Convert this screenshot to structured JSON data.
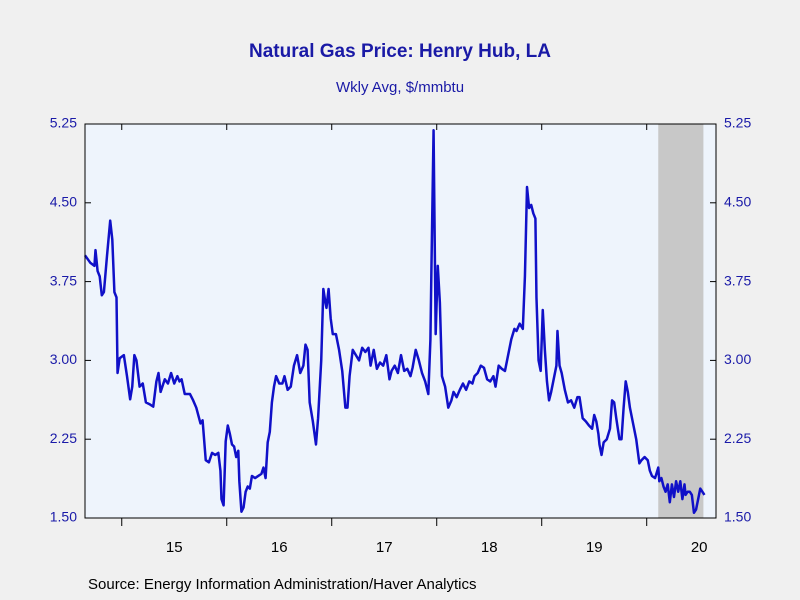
{
  "chart_data": {
    "type": "line",
    "title": "Natural Gas Price: Henry Hub, LA",
    "subtitle": "Wkly Avg, $/mmbtu",
    "source": "Source:  Energy Information Administration/Haver Analytics",
    "color": "#1010c8",
    "shading": {
      "start": 2020.11,
      "end": 2020.54,
      "color": "#c8c8c8"
    },
    "xlim": [
      2014.65,
      2020.66
    ],
    "xticks": [
      {
        "value": 2015,
        "label": "15"
      },
      {
        "value": 2016,
        "label": "16"
      },
      {
        "value": 2017,
        "label": "17"
      },
      {
        "value": 2018,
        "label": "18"
      },
      {
        "value": 2019,
        "label": "19"
      },
      {
        "value": 2020,
        "label": "20"
      }
    ],
    "ylim": [
      1.5,
      5.25
    ],
    "yticks": [
      {
        "value": 1.5,
        "label": "1.50"
      },
      {
        "value": 2.25,
        "label": "2.25"
      },
      {
        "value": 3,
        "label": "3.00"
      },
      {
        "value": 3.75,
        "label": "3.75"
      },
      {
        "value": 4.5,
        "label": "4.50"
      },
      {
        "value": 5.25,
        "label": "5.25"
      }
    ],
    "x": [
      2014.65,
      2014.7,
      2014.74,
      2014.75,
      2014.77,
      2014.79,
      2014.81,
      2014.83,
      2014.86,
      2014.89,
      2014.91,
      2014.93,
      2014.95,
      2014.96,
      2014.98,
      2015.02,
      2015.05,
      2015.08,
      2015.1,
      2015.12,
      2015.14,
      2015.17,
      2015.2,
      2015.23,
      2015.27,
      2015.3,
      2015.33,
      2015.35,
      2015.37,
      2015.41,
      2015.44,
      2015.47,
      2015.5,
      2015.53,
      2015.55,
      2015.57,
      2015.6,
      2015.65,
      2015.68,
      2015.71,
      2015.75,
      2015.77,
      2015.8,
      2015.83,
      2015.86,
      2015.89,
      2015.92,
      2015.94,
      2015.95,
      2015.97,
      2015.99,
      2016.01,
      2016.03,
      2016.05,
      2016.07,
      2016.09,
      2016.11,
      2016.12,
      2016.14,
      2016.16,
      2016.18,
      2016.2,
      2016.22,
      2016.24,
      2016.27,
      2016.3,
      2016.33,
      2016.35,
      2016.37,
      2016.39,
      2016.41,
      2016.43,
      2016.45,
      2016.47,
      2016.5,
      2016.53,
      2016.55,
      2016.58,
      2016.61,
      2016.64,
      2016.67,
      2016.7,
      2016.73,
      2016.75,
      2016.77,
      2016.79,
      2016.82,
      2016.85,
      2016.87,
      2016.9,
      2016.92,
      2016.94,
      2016.95,
      2016.97,
      2016.99,
      2017.01,
      2017.04,
      2017.07,
      2017.1,
      2017.13,
      2017.15,
      2017.17,
      2017.2,
      2017.23,
      2017.26,
      2017.29,
      2017.32,
      2017.35,
      2017.37,
      2017.4,
      2017.43,
      2017.46,
      2017.49,
      2017.52,
      2017.55,
      2017.57,
      2017.6,
      2017.63,
      2017.66,
      2017.69,
      2017.72,
      2017.75,
      2017.77,
      2017.8,
      2017.83,
      2017.86,
      2017.89,
      2017.92,
      2017.94,
      2017.95,
      2017.97,
      2017.99,
      2018.01,
      2018.03,
      2018.05,
      2018.08,
      2018.11,
      2018.14,
      2018.16,
      2018.19,
      2018.22,
      2018.25,
      2018.28,
      2018.31,
      2018.34,
      2018.36,
      2018.39,
      2018.42,
      2018.45,
      2018.48,
      2018.51,
      2018.54,
      2018.56,
      2018.59,
      2018.62,
      2018.65,
      2018.68,
      2018.71,
      2018.74,
      2018.76,
      2018.79,
      2018.82,
      2018.84,
      2018.86,
      2018.88,
      2018.9,
      2018.92,
      2018.94,
      2018.95,
      2018.97,
      2018.99,
      2019.01,
      2019.03,
      2019.05,
      2019.07,
      2019.09,
      2019.11,
      2019.14,
      2019.15,
      2019.17,
      2019.19,
      2019.22,
      2019.25,
      2019.28,
      2019.31,
      2019.34,
      2019.36,
      2019.39,
      2019.42,
      2019.45,
      2019.48,
      2019.5,
      2019.52,
      2019.54,
      2019.55,
      2019.57,
      2019.59,
      2019.62,
      2019.65,
      2019.67,
      2019.69,
      2019.71,
      2019.74,
      2019.76,
      2019.78,
      2019.8,
      2019.82,
      2019.84,
      2019.87,
      2019.9,
      2019.93,
      2019.95,
      2019.98,
      2020.01,
      2020.03,
      2020.05,
      2020.08,
      2020.11,
      2020.12,
      2020.14,
      2020.16,
      2020.18,
      2020.2,
      2020.22,
      2020.24,
      2020.26,
      2020.28,
      2020.3,
      2020.32,
      2020.34,
      2020.36,
      2020.37,
      2020.39,
      2020.41,
      2020.43,
      2020.45,
      2020.47,
      2020.49,
      2020.51,
      2020.53,
      2020.55
    ],
    "values": [
      4.0,
      3.93,
      3.9,
      4.05,
      3.85,
      3.8,
      3.62,
      3.65,
      4.0,
      4.33,
      4.15,
      3.65,
      3.6,
      2.88,
      3.02,
      3.05,
      2.85,
      2.63,
      2.75,
      3.05,
      3.0,
      2.75,
      2.78,
      2.6,
      2.58,
      2.56,
      2.8,
      2.88,
      2.7,
      2.82,
      2.78,
      2.88,
      2.78,
      2.85,
      2.8,
      2.82,
      2.68,
      2.68,
      2.62,
      2.55,
      2.4,
      2.43,
      2.05,
      2.03,
      2.12,
      2.1,
      2.12,
      1.95,
      1.68,
      1.62,
      2.23,
      2.38,
      2.3,
      2.2,
      2.18,
      2.08,
      2.14,
      1.85,
      1.56,
      1.6,
      1.75,
      1.8,
      1.78,
      1.9,
      1.88,
      1.9,
      1.92,
      1.98,
      1.88,
      2.22,
      2.32,
      2.6,
      2.75,
      2.85,
      2.78,
      2.78,
      2.85,
      2.72,
      2.75,
      2.95,
      3.05,
      2.88,
      2.95,
      3.15,
      3.1,
      2.6,
      2.42,
      2.2,
      2.45,
      3.0,
      3.68,
      3.55,
      3.5,
      3.68,
      3.4,
      3.25,
      3.25,
      3.1,
      2.9,
      2.55,
      2.55,
      2.85,
      3.1,
      3.05,
      3.0,
      3.12,
      3.08,
      3.12,
      2.95,
      3.1,
      2.92,
      2.98,
      2.95,
      3.05,
      2.82,
      2.9,
      2.95,
      2.88,
      3.05,
      2.9,
      2.92,
      2.85,
      2.93,
      3.1,
      3.0,
      2.88,
      2.8,
      2.68,
      3.2,
      3.9,
      5.19,
      3.25,
      3.9,
      3.55,
      2.85,
      2.75,
      2.55,
      2.62,
      2.7,
      2.65,
      2.72,
      2.78,
      2.72,
      2.8,
      2.78,
      2.85,
      2.88,
      2.95,
      2.93,
      2.82,
      2.8,
      2.85,
      2.75,
      2.95,
      2.92,
      2.9,
      3.05,
      3.2,
      3.3,
      3.28,
      3.35,
      3.3,
      3.8,
      4.65,
      4.45,
      4.48,
      4.4,
      4.35,
      3.6,
      3.0,
      2.9,
      3.48,
      3.1,
      2.8,
      2.62,
      2.7,
      2.8,
      2.95,
      3.28,
      2.95,
      2.88,
      2.72,
      2.6,
      2.62,
      2.55,
      2.65,
      2.65,
      2.45,
      2.42,
      2.38,
      2.35,
      2.48,
      2.42,
      2.3,
      2.2,
      2.1,
      2.22,
      2.25,
      2.35,
      2.62,
      2.6,
      2.45,
      2.25,
      2.25,
      2.55,
      2.8,
      2.7,
      2.55,
      2.4,
      2.25,
      2.02,
      2.05,
      2.08,
      2.05,
      1.95,
      1.9,
      1.88,
      1.98,
      1.85,
      1.88,
      1.8,
      1.75,
      1.82,
      1.65,
      1.82,
      1.7,
      1.85,
      1.75,
      1.85,
      1.68,
      1.82,
      1.72,
      1.75,
      1.75,
      1.72,
      1.55,
      1.58,
      1.68,
      1.78,
      1.75,
      1.72
    ]
  }
}
